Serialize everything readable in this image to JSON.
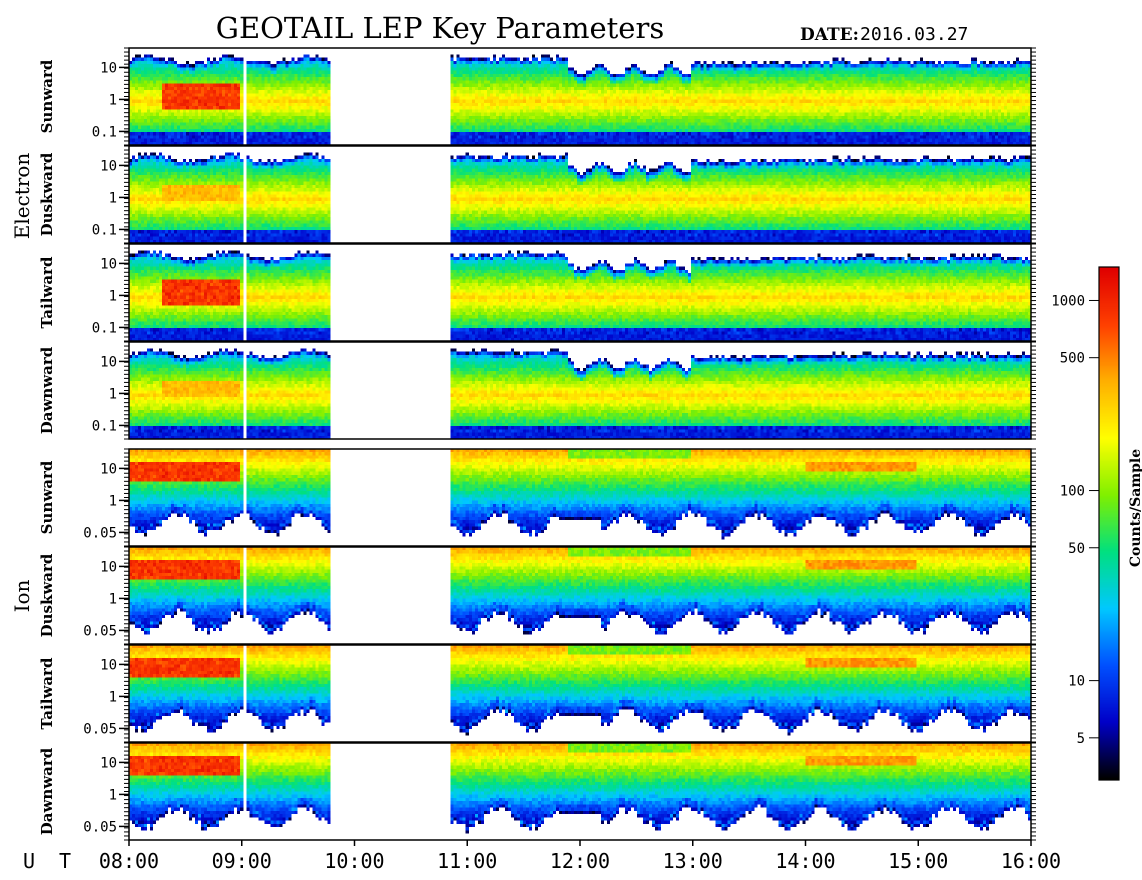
{
  "title": "GEOTAIL LEP Key Parameters",
  "date_label": "DATE:",
  "date_value": "2016.03.27",
  "x_axis_label": "U T",
  "colorbar": {
    "label": "Counts/Sample",
    "scale": "log",
    "range": [
      3,
      1500
    ],
    "ticks": [
      "1000",
      "500",
      "100",
      "50",
      "10",
      "5"
    ],
    "tick_values": [
      1000,
      500,
      100,
      50,
      10,
      5
    ],
    "colormap": [
      "#000000",
      "#0000c8",
      "#0050ff",
      "#00c8ff",
      "#00e080",
      "#80f000",
      "#ffff00",
      "#ffb000",
      "#ff4000",
      "#e00000"
    ]
  },
  "groups": [
    {
      "label": "Electron",
      "panels": [
        "Sunward",
        "Duskward",
        "Tailward",
        "Dawnward"
      ],
      "y_ticks": [
        "10",
        "1",
        "0.1"
      ]
    },
    {
      "label": "Ion",
      "panels": [
        "Sunward",
        "Duskward",
        "Tailward",
        "Dawnward"
      ],
      "y_ticks": [
        "10",
        "1",
        "0.05"
      ]
    }
  ],
  "chart_data": {
    "type": "heatmap",
    "title": "GEOTAIL LEP Key Parameters",
    "date": "2016.03.27",
    "x": {
      "label": "U T",
      "ticks": [
        "08:00",
        "09:00",
        "10:00",
        "11:00",
        "12:00",
        "13:00",
        "14:00",
        "15:00",
        "16:00"
      ],
      "range_hours": [
        8,
        16
      ]
    },
    "y": {
      "scale": "log",
      "unit_ticks_electron": [
        "10",
        "1",
        "0.1"
      ],
      "unit_ticks_ion": [
        "10",
        "1",
        "0.05"
      ]
    },
    "data_gaps": [
      [
        9.02,
        9.04
      ],
      [
        9.78,
        10.85
      ]
    ],
    "electron_cutoff_dip_hours": [
      12.4,
      12.9
    ],
    "peak_counts_electron": 1000,
    "peak_counts_ion": 1000
  }
}
